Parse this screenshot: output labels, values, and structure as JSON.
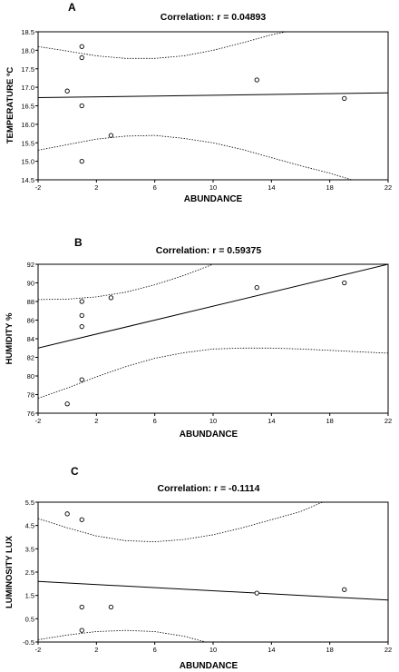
{
  "chart_data": [
    {
      "type": "scatter",
      "panel_label": "A",
      "title": "Correlation: r = 0.04893",
      "xlabel": "ABUNDANCE",
      "ylabel": "TEMPERATURE ºC",
      "xlim": [
        -2,
        22
      ],
      "ylim": [
        14.5,
        18.5
      ],
      "xticks": [
        "-2",
        "2",
        "6",
        "10",
        "14",
        "18",
        "22"
      ],
      "yticks": [
        "14.5",
        "15.0",
        "15.5",
        "16.0",
        "16.5",
        "17.0",
        "17.5",
        "18.0",
        "18.5"
      ],
      "points": [
        {
          "x": 1,
          "y": 18.1
        },
        {
          "x": 1,
          "y": 17.8
        },
        {
          "x": 0,
          "y": 16.9
        },
        {
          "x": 1,
          "y": 16.5
        },
        {
          "x": 3,
          "y": 15.7
        },
        {
          "x": 1,
          "y": 15.0
        },
        {
          "x": 13,
          "y": 17.2
        },
        {
          "x": 19,
          "y": 16.7
        }
      ],
      "regression": [
        {
          "x": -2,
          "y": 16.72
        },
        {
          "x": 22,
          "y": 16.85
        }
      ],
      "ci_upper": [
        {
          "x": -2,
          "y": 18.1
        },
        {
          "x": 0,
          "y": 17.98
        },
        {
          "x": 2,
          "y": 17.85
        },
        {
          "x": 4,
          "y": 17.78
        },
        {
          "x": 6,
          "y": 17.78
        },
        {
          "x": 8,
          "y": 17.85
        },
        {
          "x": 10,
          "y": 18.0
        },
        {
          "x": 12,
          "y": 18.2
        },
        {
          "x": 14,
          "y": 18.42
        },
        {
          "x": 15,
          "y": 18.5
        }
      ],
      "ci_lower": [
        {
          "x": -2,
          "y": 15.3
        },
        {
          "x": 0,
          "y": 15.45
        },
        {
          "x": 2,
          "y": 15.6
        },
        {
          "x": 4,
          "y": 15.68
        },
        {
          "x": 6,
          "y": 15.7
        },
        {
          "x": 8,
          "y": 15.62
        },
        {
          "x": 10,
          "y": 15.5
        },
        {
          "x": 12,
          "y": 15.32
        },
        {
          "x": 14,
          "y": 15.1
        },
        {
          "x": 16,
          "y": 14.88
        },
        {
          "x": 18,
          "y": 14.68
        },
        {
          "x": 19.5,
          "y": 14.5
        }
      ],
      "grid": false
    },
    {
      "type": "scatter",
      "panel_label": "B",
      "title": "Correlation: r = 0.59375",
      "xlabel": "ABUNDANCE",
      "ylabel": "HUMIDITY %",
      "xlim": [
        -2,
        22
      ],
      "ylim": [
        76,
        92
      ],
      "xticks": [
        "-2",
        "2",
        "6",
        "10",
        "14",
        "18",
        "22"
      ],
      "yticks": [
        "76",
        "78",
        "80",
        "82",
        "84",
        "86",
        "88",
        "90",
        "92"
      ],
      "points": [
        {
          "x": 1,
          "y": 88.0
        },
        {
          "x": 3,
          "y": 88.4
        },
        {
          "x": 1,
          "y": 86.5
        },
        {
          "x": 1,
          "y": 85.3
        },
        {
          "x": 1,
          "y": 79.6
        },
        {
          "x": 0,
          "y": 77.0
        },
        {
          "x": 13,
          "y": 89.5
        },
        {
          "x": 19,
          "y": 90.0
        }
      ],
      "regression": [
        {
          "x": -2,
          "y": 83.0
        },
        {
          "x": 22,
          "y": 92.0
        }
      ],
      "ci_upper": [
        {
          "x": -2,
          "y": 88.2
        },
        {
          "x": 0,
          "y": 88.25
        },
        {
          "x": 2,
          "y": 88.5
        },
        {
          "x": 4,
          "y": 89.0
        },
        {
          "x": 6,
          "y": 89.8
        },
        {
          "x": 8,
          "y": 90.8
        },
        {
          "x": 10,
          "y": 92.0
        }
      ],
      "ci_lower": [
        {
          "x": -2,
          "y": 77.6
        },
        {
          "x": 0,
          "y": 78.7
        },
        {
          "x": 2,
          "y": 79.9
        },
        {
          "x": 4,
          "y": 81.0
        },
        {
          "x": 6,
          "y": 81.9
        },
        {
          "x": 8,
          "y": 82.5
        },
        {
          "x": 10,
          "y": 82.9
        },
        {
          "x": 12,
          "y": 83.0
        },
        {
          "x": 14,
          "y": 83.0
        },
        {
          "x": 16,
          "y": 82.9
        },
        {
          "x": 18,
          "y": 82.75
        },
        {
          "x": 20,
          "y": 82.6
        },
        {
          "x": 22,
          "y": 82.45
        }
      ],
      "grid": false
    },
    {
      "type": "scatter",
      "panel_label": "C",
      "title": "Correlation: r = -0.1114",
      "xlabel": "ABUNDANCE",
      "ylabel": "LUMINOSITY LUX",
      "xlim": [
        -2,
        22
      ],
      "ylim": [
        -0.5,
        5.5
      ],
      "xticks": [
        "-2",
        "2",
        "6",
        "10",
        "14",
        "18",
        "22"
      ],
      "yticks": [
        "-0.5",
        "0.5",
        "1.5",
        "2.5",
        "3.5",
        "4.5",
        "5.5"
      ],
      "points": [
        {
          "x": 0,
          "y": 5.0
        },
        {
          "x": 1,
          "y": 4.75
        },
        {
          "x": 1,
          "y": 1.0
        },
        {
          "x": 3,
          "y": 1.0
        },
        {
          "x": 1,
          "y": 0.0
        },
        {
          "x": 13,
          "y": 1.6
        },
        {
          "x": 19,
          "y": 1.75
        }
      ],
      "regression": [
        {
          "x": -2,
          "y": 2.1
        },
        {
          "x": 22,
          "y": 1.3
        }
      ],
      "ci_upper": [
        {
          "x": -2,
          "y": 4.8
        },
        {
          "x": 0,
          "y": 4.4
        },
        {
          "x": 2,
          "y": 4.05
        },
        {
          "x": 4,
          "y": 3.85
        },
        {
          "x": 6,
          "y": 3.8
        },
        {
          "x": 8,
          "y": 3.9
        },
        {
          "x": 10,
          "y": 4.1
        },
        {
          "x": 12,
          "y": 4.4
        },
        {
          "x": 14,
          "y": 4.75
        },
        {
          "x": 16,
          "y": 5.1
        },
        {
          "x": 17.5,
          "y": 5.5
        }
      ],
      "ci_lower": [
        {
          "x": -2,
          "y": -0.4
        },
        {
          "x": 0,
          "y": -0.2
        },
        {
          "x": 2,
          "y": -0.05
        },
        {
          "x": 4,
          "y": 0.0
        },
        {
          "x": 6,
          "y": -0.05
        },
        {
          "x": 8,
          "y": -0.25
        },
        {
          "x": 9.5,
          "y": -0.5
        }
      ],
      "grid": false
    }
  ]
}
